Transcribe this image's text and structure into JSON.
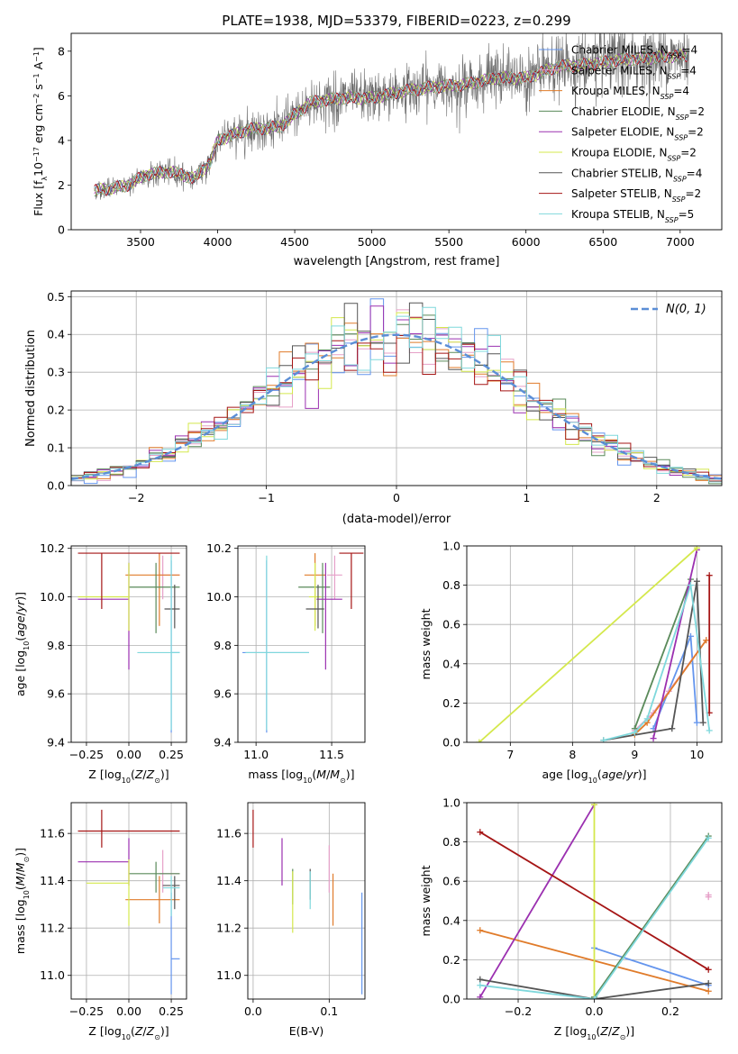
{
  "figure_title": "PLATE=1938, MJD=53379, FIBERID=0223, z=0.299",
  "models": [
    {
      "label": "Chabrier MILES, N_SSP=4",
      "name": "Chabrier MILES",
      "nssp": "4",
      "color": "#6495ED"
    },
    {
      "label": "Salpeter MILES, N_SSP=4",
      "name": "Salpeter MILES",
      "nssp": "4",
      "color": "#E6A0C8"
    },
    {
      "label": "Kroupa MILES, N_SSP=4",
      "name": "Kroupa MILES",
      "nssp": "4",
      "color": "#E07B2A"
    },
    {
      "label": "Chabrier ELODIE, N_SSP=2",
      "name": "Chabrier ELODIE",
      "nssp": "2",
      "color": "#5A8A5A"
    },
    {
      "label": "Salpeter ELODIE, N_SSP=2",
      "name": "Salpeter ELODIE",
      "nssp": "2",
      "color": "#9B30B0"
    },
    {
      "label": "Kroupa ELODIE, N_SSP=2",
      "name": "Kroupa ELODIE",
      "nssp": "2",
      "color": "#D4E84C"
    },
    {
      "label": "Chabrier STELIB, N_SSP=4",
      "name": "Chabrier STELIB",
      "nssp": "4",
      "color": "#555555"
    },
    {
      "label": "Salpeter STELIB, N_SSP=2",
      "name": "Salpeter STELIB",
      "nssp": "2",
      "color": "#A51515"
    },
    {
      "label": "Kroupa STELIB, N_SSP=5",
      "name": "Kroupa STELIB",
      "nssp": "5",
      "color": "#7FD8DC"
    }
  ],
  "chart_data": [
    {
      "id": "spectrum",
      "type": "line",
      "xlabel": "wavelength [Angstrom, rest frame]",
      "ylabel": "Flux [f_λ10^-17 erg cm^-2 s^-1 A^-1]",
      "xlim": [
        3050,
        7270
      ],
      "ylim": [
        0,
        8.8
      ],
      "xticks": [
        3500,
        4000,
        4500,
        5000,
        5500,
        6000,
        6500,
        7000
      ],
      "yticks": [
        0,
        2,
        4,
        6,
        8
      ],
      "model_x": [
        3200,
        3400,
        3550,
        3700,
        3850,
        3950,
        4000,
        4200,
        4400,
        4600,
        4800,
        5000,
        5200,
        5400,
        5600,
        5800,
        6000,
        6200,
        6400,
        6600,
        6800,
        7000,
        7050
      ],
      "model_y": [
        1.75,
        1.95,
        2.5,
        2.6,
        2.3,
        3.0,
        4.0,
        4.5,
        4.6,
        5.7,
        5.9,
        5.9,
        6.2,
        6.4,
        6.5,
        6.8,
        6.8,
        7.3,
        7.4,
        7.6,
        7.7,
        7.8,
        7.8
      ]
    },
    {
      "id": "residual_hist",
      "type": "histogram",
      "xlabel": "(data-model)/error",
      "ylabel": "Normed distribution",
      "xlim": [
        -2.5,
        2.5
      ],
      "ylim": [
        0,
        0.515
      ],
      "xticks": [
        -2,
        -1,
        0,
        1,
        2
      ],
      "yticks": [
        0,
        0.1,
        0.2,
        0.3,
        0.4,
        0.5
      ],
      "grid": true,
      "bin_width": 0.1,
      "legend": "N(0,1)",
      "legend_position": "top-right",
      "normal_mean": 0,
      "normal_sigma": 1
    },
    {
      "id": "age_vs_Z",
      "type": "scatter",
      "xlabel": "Z [log10(Z/Z⊙)]",
      "ylabel": "age  [log10(age/yr)]",
      "xlim": [
        -0.34,
        0.34
      ],
      "ylim": [
        9.4,
        10.21
      ],
      "xticks": [
        -0.25,
        0,
        0.25
      ],
      "yticks": [
        9.4,
        9.6,
        9.8,
        10.0,
        10.2
      ],
      "grid": true,
      "points": [
        {
          "m": 0,
          "x": 0.25,
          "y": 9.77,
          "ex": [
            0.0,
            0.05
          ],
          "ey": [
            0.33,
            0.38
          ]
        },
        {
          "m": 1,
          "x": 0.2,
          "y": 10.09,
          "ex": [
            0.02,
            0.1
          ],
          "ey": [
            0.1,
            0.08
          ]
        },
        {
          "m": 2,
          "x": 0.18,
          "y": 10.09,
          "ex": [
            0.2,
            0.12
          ],
          "ey": [
            0.21,
            0.09
          ]
        },
        {
          "m": 3,
          "x": 0.16,
          "y": 10.04,
          "ex": [
            0.16,
            0.14
          ],
          "ey": [
            0.19,
            0.1
          ]
        },
        {
          "m": 4,
          "x": 0.0,
          "y": 9.99,
          "ex": [
            0.3,
            0.0
          ],
          "ey": [
            0.29,
            0.15
          ]
        },
        {
          "m": 5,
          "x": 0.0,
          "y": 10.0,
          "ex": [
            0.3,
            0.0
          ],
          "ey": [
            0.14,
            0.14
          ]
        },
        {
          "m": 6,
          "x": 0.27,
          "y": 9.95,
          "ex": [
            0.06,
            0.03
          ],
          "ey": [
            0.08,
            0.1
          ]
        },
        {
          "m": 7,
          "x": -0.16,
          "y": 10.18,
          "ex": [
            0.14,
            0.46
          ],
          "ey": [
            0.23,
            0.0
          ]
        },
        {
          "m": 8,
          "x": 0.25,
          "y": 9.77,
          "ex": [
            0.2,
            0.05
          ],
          "ey": [
            0.32,
            0.4
          ]
        }
      ]
    },
    {
      "id": "age_vs_mass",
      "type": "scatter",
      "xlabel": "mass [log10(M/M⊙)]",
      "ylabel": "",
      "xlim": [
        10.88,
        11.72
      ],
      "ylim": [
        9.4,
        10.21
      ],
      "xticks": [
        11.0,
        11.5
      ],
      "yticks": [
        9.4,
        9.6,
        9.8,
        10.0,
        10.2
      ],
      "grid": true,
      "points": [
        {
          "m": 0,
          "x": 11.07,
          "y": 9.77,
          "ex": [
            0.16,
            0.28
          ],
          "ey": [
            0.33,
            0.38
          ]
        },
        {
          "m": 1,
          "x": 11.52,
          "y": 10.09,
          "ex": [
            0.05,
            0.05
          ],
          "ey": [
            0.1,
            0.08
          ]
        },
        {
          "m": 2,
          "x": 11.39,
          "y": 10.09,
          "ex": [
            0.07,
            0.07
          ],
          "ey": [
            0.21,
            0.09
          ]
        },
        {
          "m": 3,
          "x": 11.44,
          "y": 10.04,
          "ex": [
            0.16,
            0.05
          ],
          "ey": [
            0.19,
            0.1
          ]
        },
        {
          "m": 4,
          "x": 11.46,
          "y": 9.99,
          "ex": [
            0.06,
            0.11
          ],
          "ey": [
            0.29,
            0.15
          ]
        },
        {
          "m": 5,
          "x": 11.39,
          "y": 10.0,
          "ex": [
            0.04,
            0.04
          ],
          "ey": [
            0.14,
            0.14
          ]
        },
        {
          "m": 6,
          "x": 11.41,
          "y": 9.95,
          "ex": [
            0.08,
            0.04
          ],
          "ey": [
            0.08,
            0.1
          ]
        },
        {
          "m": 7,
          "x": 11.63,
          "y": 10.18,
          "ex": [
            0.08,
            0.08
          ],
          "ey": [
            0.23,
            0.0
          ]
        },
        {
          "m": 8,
          "x": 11.07,
          "y": 9.77,
          "ex": [
            0.14,
            0.28
          ],
          "ey": [
            0.32,
            0.4
          ]
        }
      ]
    },
    {
      "id": "weight_vs_age",
      "type": "line",
      "xlabel": "age  [log10(age/yr)]",
      "ylabel": "mass weight",
      "xlim": [
        6.3,
        10.4
      ],
      "ylim": [
        0,
        1.0
      ],
      "xticks": [
        7,
        8,
        9,
        10
      ],
      "yticks": [
        0,
        0.2,
        0.4,
        0.6,
        0.8,
        1.0
      ],
      "grid": true,
      "series": [
        {
          "m": 0,
          "x": [
            9.3,
            9.9,
            10.0
          ],
          "y": [
            0.07,
            0.54,
            0.1
          ]
        },
        {
          "m": 1,
          "x": [
            9.0,
            9.3,
            9.55,
            10.15
          ],
          "y": [
            0.06,
            0.15,
            0.26,
            0.52
          ]
        },
        {
          "m": 2,
          "x": [
            9.0,
            9.2,
            10.15
          ],
          "y": [
            0.04,
            0.1,
            0.52
          ]
        },
        {
          "m": 3,
          "x": [
            9.0,
            9.9
          ],
          "y": [
            0.07,
            0.83
          ]
        },
        {
          "m": 4,
          "x": [
            9.3,
            10.0
          ],
          "y": [
            0.02,
            0.98
          ]
        },
        {
          "m": 5,
          "x": [
            6.5,
            10.0
          ],
          "y": [
            0.0,
            0.99
          ]
        },
        {
          "m": 6,
          "x": [
            8.5,
            9.6,
            10.0,
            10.1
          ],
          "y": [
            0.01,
            0.07,
            0.82,
            0.1
          ]
        },
        {
          "m": 7,
          "x": [
            10.2,
            10.2
          ],
          "y": [
            0.15,
            0.85
          ]
        },
        {
          "m": 8,
          "x": [
            8.5,
            9.0,
            9.2,
            9.9,
            10.2
          ],
          "y": [
            0.01,
            0.05,
            0.12,
            0.8,
            0.06
          ]
        }
      ]
    },
    {
      "id": "mass_vs_Z",
      "type": "scatter",
      "xlabel": "Z [log10(Z/Z⊙)]",
      "ylabel": "mass [log10(M/M⊙)]",
      "xlim": [
        -0.34,
        0.34
      ],
      "ylim": [
        10.9,
        11.73
      ],
      "xticks": [
        -0.25,
        0,
        0.25
      ],
      "yticks": [
        11.0,
        11.2,
        11.4,
        11.6
      ],
      "grid": true,
      "points": [
        {
          "m": 0,
          "x": 0.25,
          "y": 11.07,
          "ex": [
            0.0,
            0.05
          ],
          "ey": [
            0.15,
            0.28
          ]
        },
        {
          "m": 1,
          "x": 0.2,
          "y": 11.43,
          "ex": [
            0.02,
            0.1
          ],
          "ey": [
            0.08,
            0.1
          ]
        },
        {
          "m": 2,
          "x": 0.18,
          "y": 11.32,
          "ex": [
            0.2,
            0.12
          ],
          "ey": [
            0.1,
            0.1
          ]
        },
        {
          "m": 3,
          "x": 0.16,
          "y": 11.43,
          "ex": [
            0.16,
            0.14
          ],
          "ey": [
            0.08,
            0.05
          ]
        },
        {
          "m": 4,
          "x": 0.0,
          "y": 11.48,
          "ex": [
            0.3,
            0.0
          ],
          "ey": [
            0.1,
            0.1
          ]
        },
        {
          "m": 5,
          "x": 0.0,
          "y": 11.39,
          "ex": [
            0.25,
            0.0
          ],
          "ey": [
            0.18,
            0.1
          ]
        },
        {
          "m": 6,
          "x": 0.27,
          "y": 11.38,
          "ex": [
            0.07,
            0.03
          ],
          "ey": [
            0.1,
            0.04
          ]
        },
        {
          "m": 7,
          "x": -0.16,
          "y": 11.61,
          "ex": [
            0.14,
            0.46
          ],
          "ey": [
            0.07,
            0.09
          ]
        },
        {
          "m": 8,
          "x": 0.25,
          "y": 11.37,
          "ex": [
            0.05,
            0.05
          ],
          "ey": [
            0.12,
            0.05
          ]
        }
      ]
    },
    {
      "id": "mass_vs_ebv",
      "type": "scatter",
      "xlabel": "E(B-V)",
      "ylabel": "",
      "xlim": [
        -0.007,
        0.147
      ],
      "ylim": [
        10.9,
        11.73
      ],
      "xticks": [
        0.0,
        0.1
      ],
      "yticks": [
        11.0,
        11.2,
        11.4,
        11.6
      ],
      "grid": true,
      "points": [
        {
          "m": 0,
          "x": 0.143,
          "y": 11.07,
          "ey": [
            0.15,
            0.28
          ]
        },
        {
          "m": 1,
          "x": 0.1,
          "y": 11.45,
          "ey": [
            0.1,
            0.1
          ]
        },
        {
          "m": 2,
          "x": 0.105,
          "y": 11.32,
          "ey": [
            0.11,
            0.11
          ]
        },
        {
          "m": 3,
          "x": 0.052,
          "y": 11.38,
          "ey": [
            0.08,
            0.07
          ]
        },
        {
          "m": 4,
          "x": 0.038,
          "y": 11.48,
          "ey": [
            0.1,
            0.1
          ]
        },
        {
          "m": 5,
          "x": 0.052,
          "y": 11.3,
          "ey": [
            0.12,
            0.14
          ]
        },
        {
          "m": 6,
          "x": 0.075,
          "y": 11.4,
          "ey": [
            0.08,
            0.05
          ]
        },
        {
          "m": 7,
          "x": 0.0,
          "y": 11.62,
          "ey": [
            0.08,
            0.08
          ]
        },
        {
          "m": 8,
          "x": 0.075,
          "y": 11.36,
          "ey": [
            0.08,
            0.08
          ]
        }
      ]
    },
    {
      "id": "weight_vs_Z",
      "type": "line",
      "xlabel": "Z [log10(Z/Z⊙)]",
      "ylabel": "mass weight",
      "xlim": [
        -0.335,
        0.335
      ],
      "ylim": [
        0,
        1.0
      ],
      "xticks": [
        -0.2,
        0.0,
        0.2
      ],
      "yticks": [
        0,
        0.2,
        0.4,
        0.6,
        0.8,
        1.0
      ],
      "grid": true,
      "series": [
        {
          "m": 0,
          "x": [
            0.0,
            0.3
          ],
          "y": [
            0.26,
            0.07
          ]
        },
        {
          "m": 1,
          "x": [
            0.3,
            0.3
          ],
          "y": [
            0.52,
            0.53
          ]
        },
        {
          "m": 2,
          "x": [
            -0.3,
            0.3
          ],
          "y": [
            0.35,
            0.04
          ]
        },
        {
          "m": 3,
          "x": [
            0.0,
            0.3
          ],
          "y": [
            0.01,
            0.83
          ]
        },
        {
          "m": 4,
          "x": [
            -0.3,
            0.0
          ],
          "y": [
            0.01,
            0.99
          ]
        },
        {
          "m": 5,
          "x": [
            0.0,
            0.0
          ],
          "y": [
            0.0,
            0.99
          ]
        },
        {
          "m": 6,
          "x": [
            -0.3,
            0.0,
            0.3
          ],
          "y": [
            0.1,
            0.0,
            0.08
          ]
        },
        {
          "m": 7,
          "x": [
            -0.3,
            0.3
          ],
          "y": [
            0.85,
            0.15
          ]
        },
        {
          "m": 8,
          "x": [
            -0.3,
            0.0,
            0.3
          ],
          "y": [
            0.07,
            0.0,
            0.82
          ]
        }
      ]
    }
  ]
}
